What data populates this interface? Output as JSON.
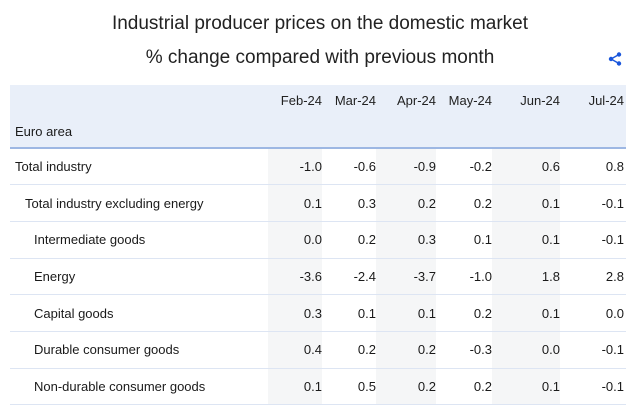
{
  "header": {
    "title": "Industrial producer prices on the domestic market",
    "subtitle": "% change compared with previous month"
  },
  "icons": {
    "share": "share-icon",
    "accent": "#1a56db"
  },
  "table": {
    "columns": [
      "Feb-24",
      "Mar-24",
      "Apr-24",
      "May-24",
      "Jun-24",
      "Jul-24"
    ],
    "section": "Euro area",
    "rows": [
      {
        "label": "Total industry",
        "level": 0,
        "values": [
          "-1.0",
          "-0.6",
          "-0.9",
          "-0.2",
          "0.6",
          "0.8"
        ]
      },
      {
        "label": "Total industry excluding energy",
        "level": 1,
        "values": [
          "0.1",
          "0.3",
          "0.2",
          "0.2",
          "0.1",
          "-0.1"
        ]
      },
      {
        "label": "Intermediate goods",
        "level": 2,
        "values": [
          "0.0",
          "0.2",
          "0.3",
          "0.1",
          "0.1",
          "-0.1"
        ]
      },
      {
        "label": "Energy",
        "level": 2,
        "values": [
          "-3.6",
          "-2.4",
          "-3.7",
          "-1.0",
          "1.8",
          "2.8"
        ]
      },
      {
        "label": "Capital goods",
        "level": 2,
        "values": [
          "0.3",
          "0.1",
          "0.1",
          "0.2",
          "0.1",
          "0.0"
        ]
      },
      {
        "label": "Durable consumer goods",
        "level": 2,
        "values": [
          "0.4",
          "0.2",
          "0.2",
          "-0.3",
          "0.0",
          "-0.1"
        ]
      },
      {
        "label": "Non-durable consumer goods",
        "level": 2,
        "values": [
          "0.1",
          "0.5",
          "0.2",
          "0.2",
          "0.1",
          "-0.1"
        ]
      }
    ]
  }
}
